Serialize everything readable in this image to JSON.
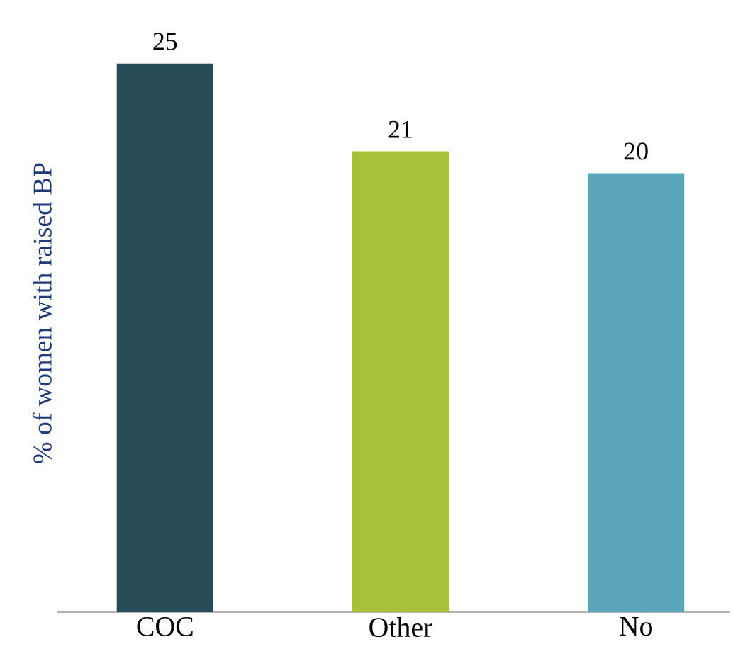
{
  "chart_data": {
    "type": "bar",
    "ylabel": "% of women with raised BP",
    "categories": [
      "COC",
      "Other",
      "No"
    ],
    "values": [
      25,
      21,
      20
    ],
    "colors": [
      "#264d57",
      "#a9c13a",
      "#5ba6ba"
    ],
    "data_labels": true
  }
}
